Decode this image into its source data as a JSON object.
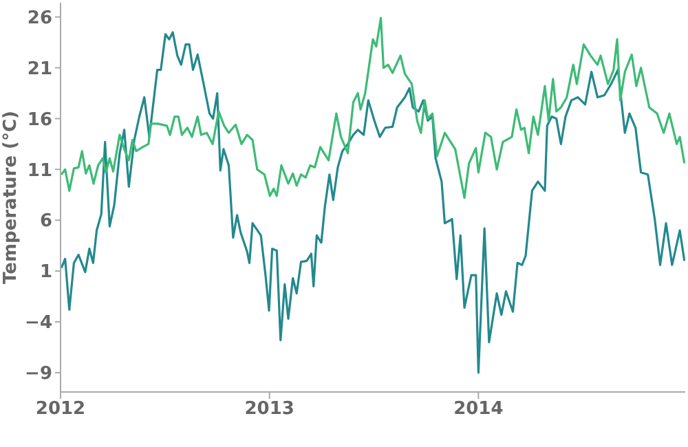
{
  "chart_data": {
    "type": "line",
    "ylabel": "Temperature (°C)",
    "xlim": [
      2012,
      2014.99
    ],
    "xticks": [
      2012,
      2013,
      2014
    ],
    "ylim": [
      -10.9,
      27.4
    ],
    "yticks": [
      26,
      21,
      16,
      11,
      6,
      1,
      -4,
      -9
    ],
    "grid": false,
    "marker": "none",
    "line_style": "solid",
    "series": [
      {
        "color": "#23898e",
        "x": [
          2012.004,
          2012.022,
          2012.042,
          2012.064,
          2012.086,
          2012.118,
          2012.138,
          2012.156,
          2012.173,
          2012.195,
          2012.213,
          2012.235,
          2012.257,
          2012.283,
          2012.305,
          2012.327,
          2012.353,
          2012.377,
          2012.401,
          2012.425,
          2012.463,
          2012.48,
          2012.502,
          2012.52,
          2012.537,
          2012.559,
          2012.577,
          2012.599,
          2012.616,
          2012.634,
          2012.656,
          2012.682,
          2012.713,
          2012.73,
          2012.75,
          2012.765,
          2012.78,
          2012.805,
          2012.826,
          2012.845,
          2012.862,
          2012.893,
          2012.904,
          2012.919,
          2012.959,
          2012.981,
          2012.998,
          2013.013,
          2013.035,
          2013.053,
          2013.073,
          2013.09,
          2013.112,
          2013.13,
          2013.151,
          2013.178,
          2013.2,
          2013.211,
          2013.226,
          2013.248,
          2013.265,
          2013.287,
          2013.305,
          2013.327,
          2013.349,
          2013.375,
          2013.401,
          2013.423,
          2013.451,
          2013.473,
          2013.502,
          2013.528,
          2013.554,
          2013.589,
          2013.611,
          2013.648,
          2013.67,
          2013.686,
          2013.714,
          2013.736,
          2013.758,
          2013.78,
          2013.795,
          2013.824,
          2013.839,
          2013.874,
          2013.896,
          2013.914,
          2013.933,
          2013.966,
          2013.988,
          2014.0,
          2014.029,
          2014.051,
          2014.088,
          2014.11,
          2014.132,
          2014.165,
          2014.187,
          2014.209,
          2014.226,
          2014.257,
          2014.285,
          2014.318,
          2014.329,
          2014.351,
          2014.373,
          2014.395,
          2014.417,
          2014.445,
          2014.476,
          2014.511,
          2014.541,
          2014.57,
          2014.603,
          2014.635,
          2014.668,
          2014.701,
          2014.723,
          2014.752,
          2014.778,
          2014.811,
          2014.844,
          2014.87,
          2014.898,
          2014.927,
          2014.964,
          2014.986
        ],
        "values": [
          1.3,
          2.2,
          -2.8,
          1.8,
          2.6,
          0.9,
          3.2,
          1.8,
          5.0,
          6.6,
          13.7,
          5.4,
          7.5,
          12.6,
          14.9,
          9.3,
          13.9,
          16.2,
          18.1,
          14.2,
          20.8,
          20.8,
          24.3,
          23.8,
          24.5,
          22.2,
          21.3,
          23.3,
          23.3,
          20.8,
          22.3,
          19.7,
          16.5,
          16.0,
          18.5,
          10.9,
          13.0,
          11.4,
          4.3,
          6.5,
          4.8,
          2.9,
          1.8,
          5.7,
          4.5,
          0.6,
          -2.9,
          3.2,
          3.0,
          -5.8,
          -0.3,
          -3.7,
          0.3,
          -1.2,
          1.9,
          2.0,
          2.7,
          -0.5,
          4.5,
          3.8,
          7.3,
          10.5,
          8.0,
          11.2,
          12.8,
          13.5,
          14.4,
          14.9,
          14.4,
          17.8,
          15.8,
          14.2,
          15.1,
          15.2,
          17.1,
          18.1,
          19.0,
          17.1,
          16.7,
          17.8,
          15.8,
          16.2,
          12.1,
          9.8,
          5.7,
          6.1,
          0.2,
          4.5,
          -2.6,
          0.6,
          0.6,
          -9.0,
          5.2,
          -6.0,
          -1.2,
          -3.3,
          -1.0,
          -3.0,
          1.8,
          1.6,
          2.5,
          8.9,
          9.8,
          8.9,
          15.3,
          16.2,
          16.0,
          13.5,
          16.2,
          17.8,
          18.1,
          17.4,
          20.6,
          18.1,
          18.3,
          19.4,
          20.8,
          14.6,
          16.5,
          15.1,
          10.7,
          10.5,
          6.1,
          1.6,
          5.7,
          1.6,
          5.0,
          2.0
        ]
      },
      {
        "color": "#3dbb76",
        "x": [
          2012.004,
          2012.022,
          2012.042,
          2012.064,
          2012.086,
          2012.103,
          2012.121,
          2012.138,
          2012.158,
          2012.18,
          2012.202,
          2012.217,
          2012.235,
          2012.252,
          2012.283,
          2012.305,
          2012.327,
          2012.344,
          2012.362,
          2012.393,
          2012.421,
          2012.432,
          2012.465,
          2012.509,
          2012.524,
          2012.546,
          2012.564,
          2012.581,
          2012.607,
          2012.629,
          2012.656,
          2012.673,
          2012.7,
          2012.728,
          2012.757,
          2012.783,
          2012.805,
          2012.838,
          2012.866,
          2012.893,
          2012.919,
          2012.941,
          2012.976,
          2013.002,
          2013.02,
          2013.035,
          2013.057,
          2013.09,
          2013.112,
          2013.13,
          2013.151,
          2013.173,
          2013.195,
          2013.217,
          2013.243,
          2013.283,
          2013.32,
          2013.342,
          2013.375,
          2013.401,
          2013.423,
          2013.436,
          2013.458,
          2013.495,
          2013.511,
          2013.533,
          2013.546,
          2013.568,
          2013.589,
          2013.627,
          2013.648,
          2013.681,
          2013.707,
          2013.725,
          2013.743,
          2013.758,
          2013.78,
          2013.802,
          2013.839,
          2013.889,
          2013.933,
          2013.955,
          2013.988,
          2014.0,
          2014.033,
          2014.06,
          2014.088,
          2014.117,
          2014.16,
          2014.182,
          2014.204,
          2014.22,
          2014.241,
          2014.263,
          2014.285,
          2014.318,
          2014.336,
          2014.357,
          2014.373,
          2014.395,
          2014.423,
          2014.454,
          2014.471,
          2014.504,
          2014.537,
          2014.57,
          2014.585,
          2014.62,
          2014.647,
          2014.664,
          2014.679,
          2014.701,
          2014.734,
          2014.756,
          2014.778,
          2014.818,
          2014.855,
          2014.887,
          2014.914,
          2014.949,
          2014.964,
          2014.986
        ],
        "values": [
          10.5,
          11.0,
          8.9,
          11.1,
          11.2,
          12.8,
          10.6,
          11.4,
          9.6,
          11.4,
          12.1,
          10.7,
          12.1,
          10.8,
          14.4,
          13.0,
          11.9,
          13.9,
          12.8,
          13.2,
          13.5,
          15.5,
          15.5,
          15.3,
          14.4,
          16.2,
          16.2,
          14.4,
          15.1,
          14.2,
          16.2,
          14.4,
          14.6,
          13.5,
          16.7,
          15.3,
          14.6,
          15.4,
          13.5,
          14.4,
          13.9,
          11.0,
          10.5,
          8.4,
          9.1,
          8.4,
          11.4,
          9.6,
          10.6,
          9.4,
          10.5,
          10.2,
          11.4,
          11.2,
          13.2,
          11.9,
          16.5,
          14.2,
          12.6,
          17.6,
          18.5,
          16.9,
          18.5,
          23.8,
          23.1,
          25.9,
          21.0,
          21.3,
          20.5,
          22.2,
          20.4,
          19.4,
          15.8,
          14.6,
          17.8,
          16.0,
          16.5,
          12.3,
          14.6,
          13.0,
          8.2,
          11.6,
          13.1,
          10.7,
          14.6,
          14.2,
          11.0,
          13.7,
          14.2,
          16.9,
          14.9,
          15.1,
          12.6,
          16.2,
          14.4,
          19.2,
          15.8,
          19.9,
          16.7,
          17.1,
          18.1,
          21.3,
          19.4,
          23.3,
          22.2,
          21.3,
          22.2,
          19.4,
          20.8,
          23.8,
          17.8,
          20.6,
          22.3,
          19.2,
          21.0,
          17.1,
          16.5,
          14.6,
          16.5,
          13.5,
          14.2,
          11.6
        ]
      }
    ]
  }
}
